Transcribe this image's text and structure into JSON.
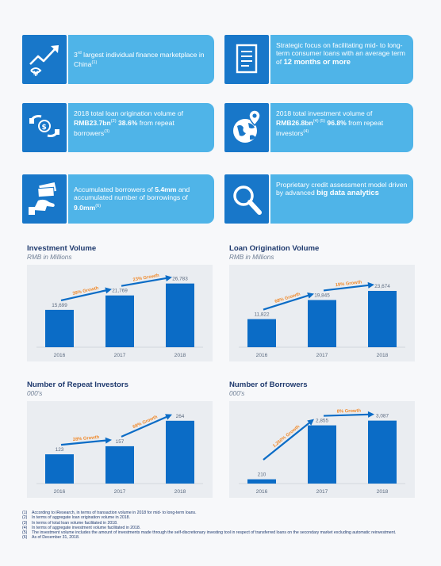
{
  "tiles": [
    {
      "id": "marketplace",
      "icon": "growth-arrow-icon",
      "parts": [
        {
          "t": "3"
        },
        {
          "t": "rd",
          "sup": true
        },
        {
          "t": " largest individual finance marketplace in China"
        },
        {
          "t": "(1)",
          "sup": true
        }
      ]
    },
    {
      "id": "strategy",
      "icon": "document-icon",
      "parts": [
        {
          "t": "Strategic focus on facilitating mid- to long-term consumer loans with an average term of "
        },
        {
          "t": "12 months or more",
          "big": true
        }
      ]
    },
    {
      "id": "loan-origination",
      "icon": "coins-hands-icon",
      "parts": [
        {
          "t": "2018 total loan origination volume of "
        },
        {
          "t": "RMB23.7bn",
          "b": true
        },
        {
          "t": "(2)",
          "sup": true
        },
        {
          "t": " "
        },
        {
          "t": "38.6%",
          "b": true
        },
        {
          "t": " from repeat borrowers"
        },
        {
          "t": "(3)",
          "sup": true
        }
      ]
    },
    {
      "id": "investment-volume",
      "icon": "globe-pin-icon",
      "parts": [
        {
          "t": "2018 total investment volume of "
        },
        {
          "t": "RMB26.8bn",
          "b": true
        },
        {
          "t": "(4) (5)",
          "sup": true
        },
        {
          "t": " "
        },
        {
          "t": "96.8%",
          "b": true
        },
        {
          "t": " from repeat investors"
        },
        {
          "t": "(4)",
          "sup": true
        }
      ]
    },
    {
      "id": "borrowers",
      "icon": "hand-money-icon",
      "parts": [
        {
          "t": "Accumulated borrowers of "
        },
        {
          "t": "5.4mm",
          "b": true
        },
        {
          "t": " and accumulated number of borrowings of "
        },
        {
          "t": "9.0mm",
          "b": true
        },
        {
          "t": "(6)",
          "sup": true
        }
      ]
    },
    {
      "id": "credit",
      "icon": "magnifier-icon",
      "parts": [
        {
          "t": "Proprietary credit assessment model driven by advanced "
        },
        {
          "t": "big data analytics",
          "big": true
        }
      ]
    }
  ],
  "chart_data": [
    {
      "type": "bar",
      "title": "Investment Volume",
      "subtitle": "RMB in Millions",
      "categories": [
        "2016",
        "2017",
        "2018"
      ],
      "values": [
        15699,
        21769,
        26783
      ],
      "value_labels": [
        "15,699",
        "21,769",
        "26,783"
      ],
      "growth_labels": [
        "39% Growth",
        "23% Growth"
      ],
      "ylim": [
        0,
        30000
      ]
    },
    {
      "type": "bar",
      "title": "Loan Origination Volume",
      "subtitle": "RMB in Millions",
      "categories": [
        "2016",
        "2017",
        "2018"
      ],
      "values": [
        11822,
        19845,
        23674
      ],
      "value_labels": [
        "11,822",
        "19,845",
        "23,674"
      ],
      "growth_labels": [
        "68% Growth",
        "19% Growth"
      ],
      "ylim": [
        0,
        30000
      ]
    },
    {
      "type": "bar",
      "title": "Number of Repeat Investors",
      "subtitle": "000's",
      "categories": [
        "2016",
        "2017",
        "2018"
      ],
      "values": [
        123,
        157,
        264
      ],
      "value_labels": [
        "123",
        "157",
        "264"
      ],
      "growth_labels": [
        "28% Growth",
        "68% Growth"
      ],
      "ylim": [
        0,
        300
      ]
    },
    {
      "type": "bar",
      "title": "Number of Borrowers",
      "subtitle": "000's",
      "categories": [
        "2016",
        "2017",
        "2018"
      ],
      "values": [
        210,
        2855,
        3087
      ],
      "value_labels": [
        "210",
        "2,855",
        "3,087"
      ],
      "growth_labels": [
        "1,260% Growth",
        "8% Growth"
      ],
      "ylim": [
        0,
        3500
      ]
    }
  ],
  "notes": [
    {
      "num": "(1)",
      "text": "According to iResearch, in terms of transaction volume in 2018 for mid- to long-term loans."
    },
    {
      "num": "(2)",
      "text": "In terms of aggregate loan origination volume in 2018."
    },
    {
      "num": "(3)",
      "text": "In terms of total loan volume facilitated in 2018."
    },
    {
      "num": "(4)",
      "text": "In terms of aggregate investment volume facilitated in 2018."
    },
    {
      "num": "(5)",
      "text": "The investment volume includes the amount of investments made through the self-discretionary investing tool in respect of transferred loans on the secondary market excluding automatic reinvestment."
    },
    {
      "num": "(6)",
      "text": "As of December 31, 2018."
    }
  ],
  "colors": {
    "icon_bg": "#1877c9",
    "tile_bg": "#4fb4e8",
    "bar": "#0b6cc6",
    "growth": "#f08a2c",
    "panel": "#eaedf1",
    "title": "#1f3a6e"
  }
}
